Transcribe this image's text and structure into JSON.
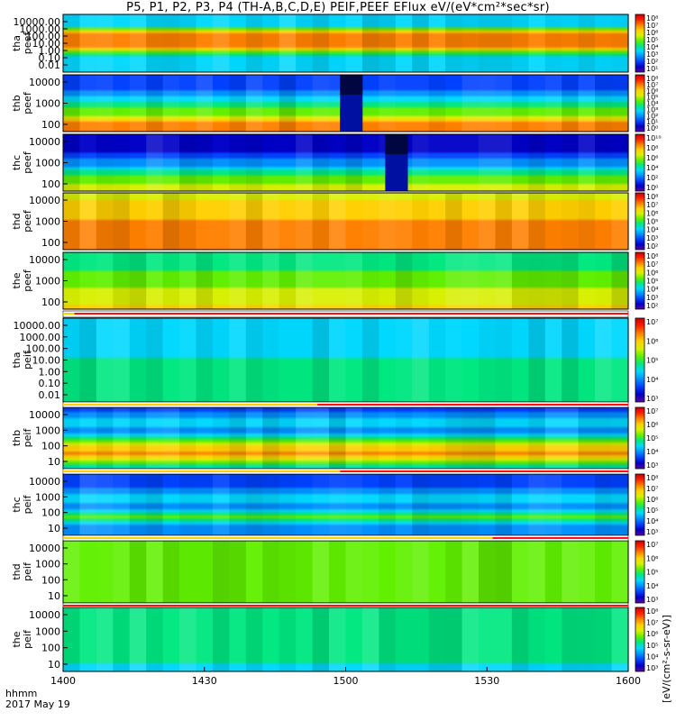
{
  "title": "P5, P1, P2, P3, P4 (TH-A,B,C,D,E) PEIF,PEEF EFlux eV/(eV*cm²*sec*sr)",
  "colorbar_label": "[eV/(cm²-s-sr-eV)]",
  "time_label": "hhmm",
  "date_label": "2017 May 19",
  "chart_data": [
    {
      "type": "heatmap",
      "probe": "tha",
      "product": "peef",
      "ylabel": "tha\npeef",
      "yticks": [
        "10000.00",
        "1000.00",
        "100.00",
        "10.00",
        "1.00",
        "0.10",
        "0.01"
      ],
      "cbticks": [
        "10⁸",
        "10⁷",
        "10⁶",
        "10⁵",
        "10⁴",
        "10³",
        "10²",
        "10¹"
      ],
      "profile": [
        [
          0,
          3.8
        ],
        [
          0.18,
          3.6
        ],
        [
          0.34,
          9.2
        ],
        [
          0.56,
          9.3
        ],
        [
          0.68,
          5.0
        ],
        [
          0.8,
          3.8
        ],
        [
          1,
          3.6
        ]
      ]
    },
    {
      "type": "heatmap",
      "probe": "thb",
      "product": "peef",
      "ylabel": "thb\npeef",
      "yticks": [
        "10000",
        "1000",
        "100"
      ],
      "cbticks": [
        "10⁸",
        "10⁷",
        "10⁶",
        "10⁵",
        "10⁴",
        "10³",
        "10²",
        "10¹",
        "10⁰"
      ],
      "profile": [
        [
          0,
          1.6
        ],
        [
          0.25,
          2.4
        ],
        [
          0.5,
          5.0
        ],
        [
          0.72,
          6.6
        ],
        [
          0.86,
          8.7
        ],
        [
          1,
          9.0
        ]
      ],
      "gap": [
        0.49,
        0.53
      ]
    },
    {
      "type": "heatmap",
      "probe": "thc",
      "product": "peef",
      "ylabel": "thc\npeef",
      "yticks": [
        "10000",
        "1000",
        "100"
      ],
      "cbticks": [
        "10¹⁰",
        "10⁸",
        "10⁶",
        "10⁴",
        "10²",
        "10⁰"
      ],
      "profile": [
        [
          0,
          0.8
        ],
        [
          0.3,
          1.3
        ],
        [
          0.55,
          3.4
        ],
        [
          0.75,
          5.6
        ],
        [
          0.88,
          6.6
        ],
        [
          1,
          7.2
        ]
      ],
      "gap": [
        0.57,
        0.61
      ]
    },
    {
      "type": "heatmap",
      "probe": "thd",
      "product": "peef",
      "ylabel": "thd\npeef",
      "yticks": [
        "10000",
        "1000",
        "100"
      ],
      "cbticks": [
        "10⁸",
        "10⁷",
        "10⁶",
        "10⁵",
        "10⁴",
        "10³",
        "10²"
      ],
      "profile": [
        [
          0,
          7.2
        ],
        [
          0.25,
          7.8
        ],
        [
          0.5,
          8.6
        ],
        [
          0.75,
          9.0
        ],
        [
          1,
          9.0
        ]
      ]
    },
    {
      "type": "heatmap",
      "probe": "the",
      "product": "peef",
      "ylabel": "the\npeef",
      "yticks": [
        "10000",
        "1000",
        "100"
      ],
      "cbticks": [
        "10⁸",
        "10⁷",
        "10⁶",
        "10⁵",
        "10⁴",
        "10³",
        "10²"
      ],
      "profile": [
        [
          0,
          4.8
        ],
        [
          0.3,
          5.4
        ],
        [
          0.55,
          6.2
        ],
        [
          0.8,
          7.2
        ],
        [
          1,
          7.6
        ]
      ]
    },
    {
      "type": "heatmap",
      "probe": "tha",
      "product": "peif",
      "ylabel": "tha\npeif",
      "yticks": [
        "10000.00",
        "1000.00",
        "100.00",
        "10.00",
        "1.00",
        "0.10",
        "0.01"
      ],
      "cbticks": [
        "10⁷",
        "10⁶",
        "10⁵",
        "10⁴",
        "10³"
      ],
      "profile": [
        [
          0,
          4.0
        ],
        [
          0.3,
          4.3
        ],
        [
          0.55,
          4.6
        ],
        [
          0.8,
          5.0
        ],
        [
          1,
          5.4
        ]
      ]
    },
    {
      "type": "heatmap",
      "probe": "thb",
      "product": "peif",
      "ylabel": "thb\npeif",
      "yticks": [
        "10000",
        "1000",
        "100",
        "10"
      ],
      "cbticks": [
        "10⁷",
        "10⁶",
        "10⁵",
        "10⁴",
        "10³"
      ],
      "profile": [
        [
          0,
          1.8
        ],
        [
          0.2,
          4.0
        ],
        [
          0.4,
          3.0
        ],
        [
          0.6,
          7.2
        ],
        [
          0.75,
          8.8
        ],
        [
          0.9,
          5.5
        ],
        [
          1,
          4.2
        ]
      ]
    },
    {
      "type": "heatmap",
      "probe": "thc",
      "product": "peif",
      "ylabel": "thc\npeif",
      "yticks": [
        "10000",
        "1000",
        "100",
        "10"
      ],
      "cbticks": [
        "10⁸",
        "10⁷",
        "10⁶",
        "10⁵",
        "10⁴",
        "10³"
      ],
      "profile": [
        [
          0,
          1.8
        ],
        [
          0.2,
          2.4
        ],
        [
          0.4,
          4.2
        ],
        [
          0.55,
          2.6
        ],
        [
          0.7,
          6.2
        ],
        [
          0.85,
          3.2
        ],
        [
          1,
          2.6
        ]
      ]
    },
    {
      "type": "heatmap",
      "probe": "thd",
      "product": "peif",
      "ylabel": "thd\npeif",
      "yticks": [
        "10000",
        "1000",
        "100",
        "10"
      ],
      "cbticks": [
        "10⁷",
        "10⁶",
        "10⁵",
        "10⁴",
        "10³"
      ],
      "profile": [
        [
          0,
          5.8
        ],
        [
          0.3,
          6.4
        ],
        [
          0.6,
          6.0
        ],
        [
          0.85,
          6.0
        ],
        [
          1,
          5.6
        ]
      ]
    },
    {
      "type": "heatmap",
      "probe": "the",
      "product": "peif",
      "ylabel": "the\npeif",
      "yticks": [
        "10000",
        "1000",
        "100",
        "10"
      ],
      "cbticks": [
        "10⁸",
        "10⁷",
        "10⁶",
        "10⁵",
        "10⁴",
        "10³"
      ],
      "profile": [
        [
          0,
          5.2
        ],
        [
          0.4,
          5.0
        ],
        [
          0.7,
          4.6
        ],
        [
          1,
          4.4
        ]
      ]
    }
  ],
  "x_axis": {
    "ticks": [
      "1400",
      "1430",
      "1500",
      "1530",
      "1600"
    ],
    "values": [
      0,
      30,
      60,
      90,
      120
    ],
    "range": [
      0,
      120
    ]
  },
  "colorscale": [
    "#6000a0",
    "#0000c8",
    "#0040ff",
    "#0090ff",
    "#00d8ff",
    "#00e880",
    "#60f000",
    "#d8f000",
    "#ffd000",
    "#ff8000",
    "#ff2000",
    "#c80000"
  ]
}
